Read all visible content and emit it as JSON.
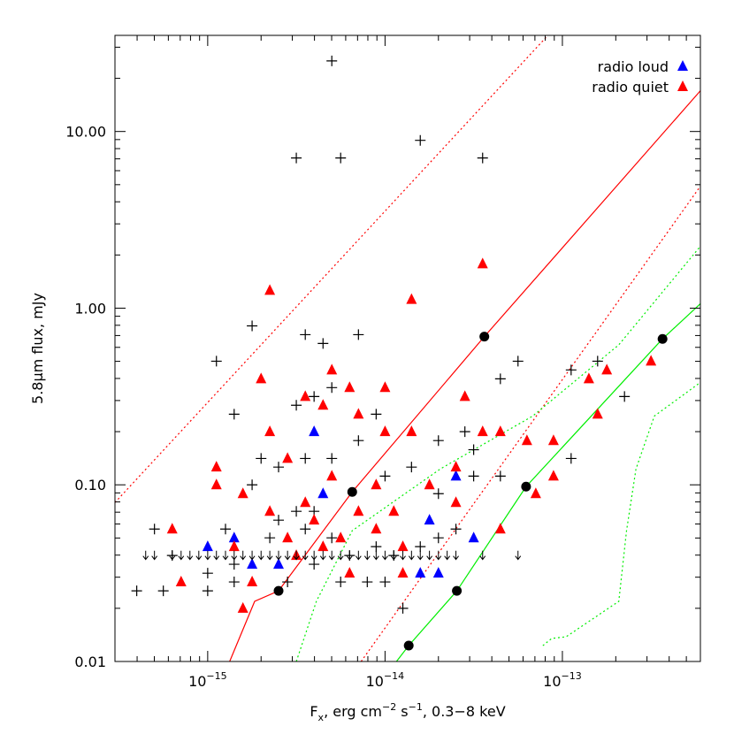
{
  "chart_data": {
    "type": "scatter",
    "x_label": [
      {
        "text": "F"
      },
      {
        "text": "x",
        "shift": "sub"
      },
      {
        "text": ", erg cm"
      },
      {
        "text": "−2",
        "shift": "sup"
      },
      {
        "text": " s"
      },
      {
        "text": "−1",
        "shift": "sup"
      },
      {
        "text": ", 0.3−8 keV"
      }
    ],
    "y_label": "5.8μm flux, mJy",
    "xscale": "log",
    "yscale": "log",
    "xlim": [
      3e-16,
      6e-13
    ],
    "ylim": [
      0.01,
      35
    ],
    "xticks": [
      {
        "value": 1e-15,
        "label": "10",
        "exponent": "−15"
      },
      {
        "value": 1e-14,
        "label": "10",
        "exponent": "−14"
      },
      {
        "value": 1e-13,
        "label": "10",
        "exponent": "−13"
      }
    ],
    "yticks": [
      {
        "value": 0.01,
        "label": "0.01"
      },
      {
        "value": 0.1,
        "label": "0.10"
      },
      {
        "value": 1,
        "label": "1.00"
      },
      {
        "value": 10,
        "label": "10.00"
      }
    ],
    "legend": "upper right",
    "series": [
      {
        "marker": "none",
        "line": "solid",
        "color": "#ff0000",
        "x": [
          1.33e-15,
          1.84e-15,
          2.51e-15,
          6.53e-15,
          3.63e-14,
          6e-13
        ],
        "values": [
          0.01,
          0.0219,
          0.0251,
          0.0912,
          0.69,
          17
        ]
      },
      {
        "marker": "none",
        "line": "dotted",
        "color": "#ff0000",
        "x": [
          3e-16,
          8.22e-14
        ],
        "values": [
          0.0794,
          34.7
        ]
      },
      {
        "marker": "none",
        "line": "dotted",
        "color": "#ff0000",
        "x": [
          7.33e-15,
          6e-13
        ],
        "values": [
          0.01,
          4.9
        ]
      },
      {
        "marker": "none",
        "line": "solid",
        "color": "#00ee00",
        "x": [
          1.16e-14,
          1.36e-14,
          2.54e-14,
          6.24e-14,
          3.67e-13,
          6e-13
        ],
        "values": [
          0.01,
          0.0123,
          0.0251,
          0.0977,
          0.67,
          1.06
        ]
      },
      {
        "marker": "none",
        "line": "dotted",
        "color": "#00ee00",
        "x": [
          3.16e-15,
          4.1e-15,
          6.53e-15,
          2.05e-14,
          6.8e-14,
          2.08e-13,
          6e-13
        ],
        "values": [
          0.01,
          0.0219,
          0.055,
          0.123,
          0.245,
          0.62,
          2.24
        ]
      },
      {
        "marker": "none",
        "line": "dotted",
        "color": "#00ee00",
        "x": [
          7.76e-14,
          8.7e-14,
          1.05e-13,
          2.08e-13,
          2.3e-13,
          2.6e-13,
          3.3e-13,
          6e-13
        ],
        "values": [
          0.0123,
          0.0135,
          0.0138,
          0.0219,
          0.055,
          0.123,
          0.245,
          0.38
        ]
      },
      {
        "marker": "plus",
        "color": "#000000",
        "x": [
          5.01e-15,
          1.58e-14,
          3.16e-15,
          5.62e-15,
          3.55e-14,
          1.12e-15,
          1.78e-15,
          1.41e-15,
          3.55e-15,
          4.47e-15,
          7.08e-15,
          5.01e-15,
          3.16e-15,
          3.98e-15,
          8.91e-15,
          2e-14,
          3.16e-14,
          2.82e-14,
          5.62e-14,
          4.47e-14,
          1.12e-13,
          1.58e-13,
          2.24e-13,
          1.12e-13,
          3.16e-14,
          4.47e-14,
          1.78e-15,
          2e-15,
          2.51e-15,
          3.55e-15,
          5.01e-15,
          7.08e-15,
          1e-14,
          1.41e-14,
          2e-14,
          5.01e-16,
          6.31e-16,
          1e-15,
          1e-15,
          1.41e-15,
          1.41e-15,
          2.24e-15,
          2.51e-15,
          3.16e-15,
          3.98e-15,
          5.01e-15,
          6.31e-15,
          7.94e-15,
          8.91e-15,
          1.12e-14,
          1.58e-14,
          2e-14,
          2.51e-14,
          1.26e-14,
          1e-14,
          5.62e-15,
          5.62e-16,
          3.98e-16,
          3.55e-15,
          3.98e-15,
          2.82e-15,
          1.26e-15
        ],
        "values": [
          25.1,
          8.91,
          7.08,
          7.08,
          7.08,
          0.501,
          0.794,
          0.251,
          0.708,
          0.631,
          0.708,
          0.355,
          0.282,
          0.316,
          0.251,
          0.178,
          0.158,
          0.2,
          0.501,
          0.398,
          0.447,
          0.501,
          0.316,
          0.141,
          0.112,
          0.112,
          0.1,
          0.141,
          0.126,
          0.141,
          0.141,
          0.178,
          0.112,
          0.126,
          0.0891,
          0.0562,
          0.0398,
          0.0316,
          0.0251,
          0.0355,
          0.0282,
          0.0501,
          0.0631,
          0.0708,
          0.0708,
          0.0501,
          0.0398,
          0.0282,
          0.0447,
          0.0398,
          0.0447,
          0.0501,
          0.0562,
          0.02,
          0.0282,
          0.0282,
          0.0251,
          0.0251,
          0.0562,
          0.0355,
          0.0282,
          0.0562
        ]
      },
      {
        "name": "radio loud",
        "marker": "triangle",
        "color": "#0000ff",
        "x": [
          1e-15,
          1.41e-15,
          1.78e-15,
          2.51e-15,
          3.98e-15,
          4.47e-15,
          1.58e-14,
          1.78e-14,
          2e-14,
          2.51e-14,
          3.16e-14
        ],
        "values": [
          0.0447,
          0.0501,
          0.0355,
          0.0355,
          0.2,
          0.0891,
          0.0316,
          0.0631,
          0.0316,
          0.112,
          0.0501
        ]
      },
      {
        "name": "radio quiet",
        "marker": "triangle",
        "color": "#ff0000",
        "x": [
          6.31e-16,
          7.08e-16,
          1.12e-15,
          1.12e-15,
          1.58e-15,
          1.41e-15,
          1.58e-15,
          1.78e-15,
          2.24e-15,
          2e-15,
          2.24e-15,
          2.82e-15,
          3.55e-15,
          3.55e-15,
          4.47e-15,
          5.01e-15,
          5.01e-15,
          6.31e-15,
          7.08e-15,
          1e-14,
          8.91e-15,
          1.41e-14,
          1.41e-14,
          1.12e-14,
          1.78e-14,
          2.51e-14,
          2.82e-14,
          3.55e-14,
          3.55e-14,
          4.47e-14,
          6.31e-14,
          8.91e-14,
          1.41e-13,
          1.58e-13,
          1.78e-13,
          8.91e-14,
          7.08e-14,
          4.47e-14,
          2.51e-14,
          6.31e-15,
          5.62e-15,
          3.98e-15,
          8.91e-15,
          1.26e-14,
          7.08e-15,
          2.82e-15,
          3.16e-15,
          4.47e-15,
          1e-14,
          1.26e-14,
          2.24e-15,
          3.16e-13
        ],
        "values": [
          0.0562,
          0.0282,
          0.126,
          0.1,
          0.0891,
          0.0447,
          0.02,
          0.0282,
          1.26,
          0.398,
          0.2,
          0.141,
          0.316,
          0.0794,
          0.282,
          0.447,
          0.112,
          0.355,
          0.251,
          0.355,
          0.1,
          1.12,
          0.2,
          0.0708,
          0.1,
          0.126,
          0.316,
          1.78,
          0.2,
          0.2,
          0.178,
          0.178,
          0.398,
          0.251,
          0.447,
          0.112,
          0.0891,
          0.0562,
          0.0794,
          0.0316,
          0.0501,
          0.0631,
          0.0562,
          0.0447,
          0.0708,
          0.0501,
          0.0398,
          0.0447,
          0.2,
          0.0316,
          0.0708,
          0.501
        ]
      },
      {
        "marker": "arrow",
        "color": "#000000",
        "x": [
          4.47e-16,
          5.01e-16,
          6.31e-16,
          7.08e-16,
          7.94e-16,
          8.91e-16,
          1e-15,
          1.12e-15,
          1.26e-15,
          1.41e-15,
          1.58e-15,
          1.78e-15,
          2e-15,
          2.24e-15,
          2.51e-15,
          2.82e-15,
          3.16e-15,
          3.55e-15,
          3.98e-15,
          4.47e-15,
          5.01e-15,
          5.62e-15,
          6.31e-15,
          7.08e-15,
          7.94e-15,
          8.91e-15,
          1e-14,
          1.12e-14,
          1.26e-14,
          1.41e-14,
          1.58e-14,
          1.78e-14,
          2e-14,
          2.24e-14,
          2.51e-14,
          3.55e-14,
          5.62e-14
        ],
        "values": [
          0.04,
          0.04,
          0.04,
          0.04,
          0.04,
          0.04,
          0.04,
          0.04,
          0.04,
          0.04,
          0.04,
          0.04,
          0.04,
          0.04,
          0.04,
          0.04,
          0.04,
          0.04,
          0.04,
          0.04,
          0.04,
          0.04,
          0.04,
          0.04,
          0.04,
          0.04,
          0.04,
          0.04,
          0.04,
          0.04,
          0.04,
          0.04,
          0.04,
          0.04,
          0.04,
          0.04,
          0.04
        ]
      },
      {
        "marker": "dot",
        "color": "#000000",
        "x": [
          2.51e-15,
          6.53e-15,
          3.63e-14,
          1.36e-14,
          2.54e-14,
          6.24e-14,
          3.67e-13
        ],
        "values": [
          0.0251,
          0.0912,
          0.69,
          0.0123,
          0.0251,
          0.0977,
          0.67
        ]
      }
    ]
  }
}
